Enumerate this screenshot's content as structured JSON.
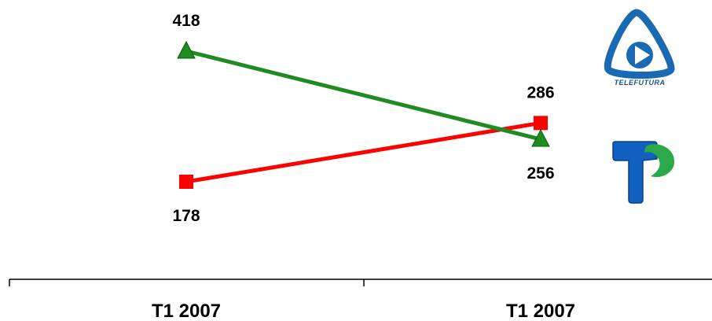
{
  "chart_data": {
    "type": "line",
    "categories": [
      "T1 2007",
      "T1 2007"
    ],
    "series": [
      {
        "color": "#1e8c1e",
        "marker": "triangle",
        "values": [
          418,
          256
        ]
      },
      {
        "color": "#ff0000",
        "marker": "square",
        "values": [
          178,
          286
        ]
      }
    ],
    "title": "",
    "xlabel": "",
    "ylabel": "",
    "ylim": [
      150,
      450
    ],
    "grid": false,
    "legend": "logos at right"
  },
  "logos": [
    {
      "name": "telefutura-logo",
      "text": "TELEFUTURA",
      "color": "#1a6ab3"
    },
    {
      "name": "telemundo-logo",
      "text": "",
      "color": "#1060c0"
    }
  ],
  "colors": {
    "axis": "#000000",
    "background": "#ffffff"
  }
}
